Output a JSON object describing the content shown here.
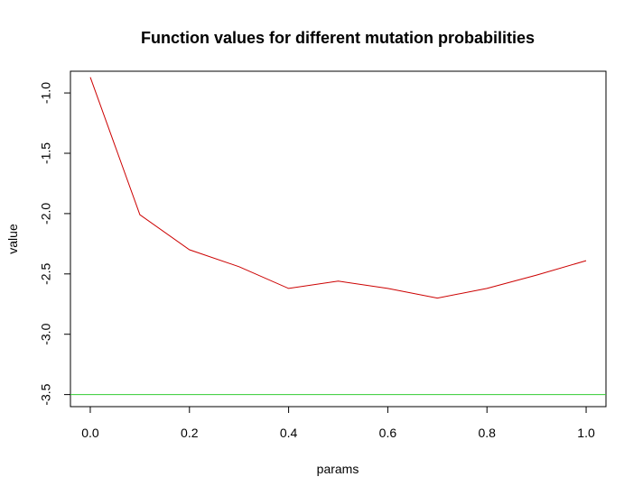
{
  "chart_data": {
    "type": "line",
    "title": "Function values for different mutation probabilities",
    "xlabel": "params",
    "ylabel": "value",
    "xlim": [
      -0.04,
      1.04
    ],
    "ylim": [
      -3.6,
      -0.82
    ],
    "x_ticks": [
      0.0,
      0.2,
      0.4,
      0.6,
      0.8,
      1.0
    ],
    "x_tick_labels": [
      "0.0",
      "0.2",
      "0.4",
      "0.6",
      "0.8",
      "1.0"
    ],
    "y_ticks": [
      -1.0,
      -1.5,
      -2.0,
      -2.5,
      -3.0,
      -3.5
    ],
    "y_tick_labels": [
      "-1.0",
      "-1.5",
      "-2.0",
      "-2.5",
      "-3.0",
      "-3.5"
    ],
    "series": [
      {
        "color": "#cc0000",
        "x": [
          0.0,
          0.1,
          0.2,
          0.3,
          0.4,
          0.5,
          0.6,
          0.7,
          0.8,
          0.9,
          1.0
        ],
        "y": [
          -0.87,
          -2.01,
          -2.3,
          -2.44,
          -2.62,
          -2.56,
          -2.62,
          -2.7,
          -2.62,
          -2.51,
          -2.39
        ]
      }
    ],
    "hlines": [
      {
        "y": -3.5,
        "color": "#33cc33"
      }
    ],
    "grid": false,
    "legend": "none"
  }
}
